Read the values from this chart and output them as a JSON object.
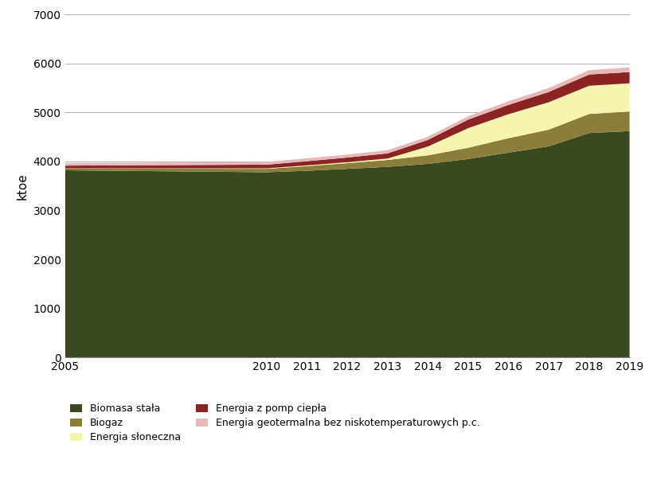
{
  "years": [
    2005,
    2010,
    2011,
    2012,
    2013,
    2014,
    2015,
    2016,
    2017,
    2018,
    2019
  ],
  "biomasa_stala": [
    3820,
    3780,
    3810,
    3850,
    3890,
    3950,
    4050,
    4180,
    4310,
    4580,
    4620
  ],
  "biogaz": [
    35,
    70,
    95,
    115,
    140,
    175,
    230,
    295,
    340,
    390,
    400
  ],
  "energia_sloneczna": [
    5,
    10,
    15,
    20,
    30,
    180,
    400,
    490,
    560,
    575,
    575
  ],
  "energia_z_pomp_ciepla": [
    55,
    75,
    85,
    95,
    105,
    135,
    175,
    190,
    210,
    230,
    230
  ],
  "energia_geotermalna": [
    50,
    55,
    60,
    60,
    65,
    65,
    70,
    75,
    80,
    90,
    95
  ],
  "colors": {
    "biomasa_stala": "#3b4a1e",
    "biogaz": "#8b7d3a",
    "energia_sloneczna": "#f5f5b0",
    "energia_z_pomp_ciepla": "#8b2525",
    "energia_geotermalna": "#e8b8b8"
  },
  "labels": {
    "biomasa_stala": "Biomasa stała",
    "biogaz": "Biogaz",
    "energia_sloneczna": "Energia słoneczna",
    "energia_z_pomp_ciepla": "Energia z pomp ciepła",
    "energia_geotermalna": "Energia geotermalna bez niskotemperaturowych p.c."
  },
  "ylabel": "ktoe",
  "ylim": [
    0,
    7000
  ],
  "yticks": [
    0,
    1000,
    2000,
    3000,
    4000,
    5000,
    6000,
    7000
  ],
  "background_color": "#ffffff",
  "grid_color": "#b0b0b0"
}
